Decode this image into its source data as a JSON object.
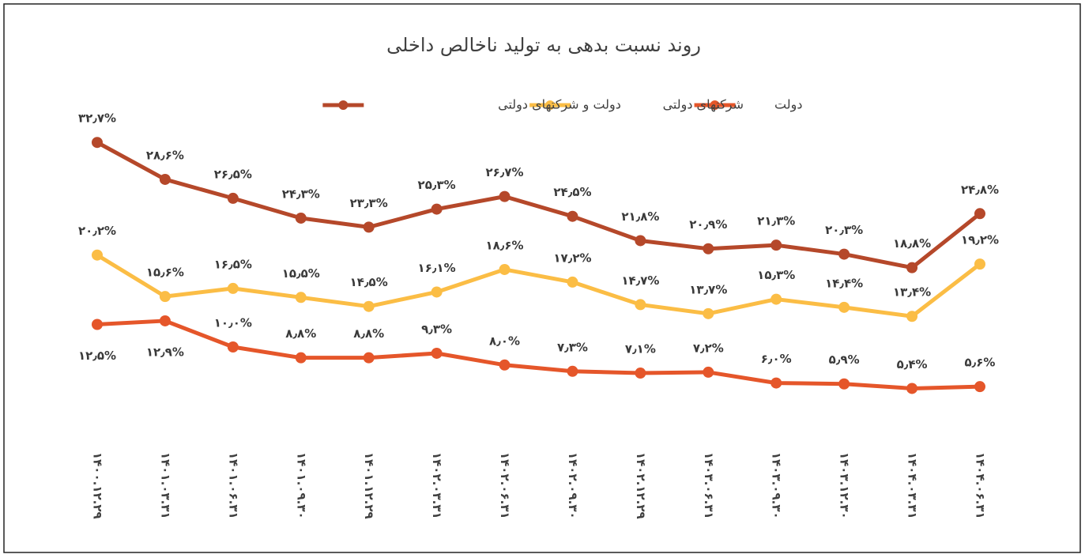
{
  "chart_data": {
    "type": "line",
    "title": "روند نسبت بدهی به تولید ناخالص داخلی",
    "categories": [
      "۱۴۰۰.۱۲.۲۹",
      "۱۴۰۱.۰۳.۳۱",
      "۱۴۰۱.۰۶.۳۱",
      "۱۴۰۱.۰۹.۳۰",
      "۱۴۰۱.۱۲.۲۹",
      "۱۴۰۲.۰۳.۳۱",
      "۱۴۰۲.۰۶.۳۱",
      "۱۴۰۲.۰۹.۳۰",
      "۱۴۰۲.۱۲.۲۹",
      "۱۴۰۳.۰۶.۳۱",
      "۱۴۰۳.۰۹.۳۰",
      "۱۴۰۳.۱۲.۳۰",
      "۱۴۰۴.۰۳.۳۱",
      "۱۴۰۴.۰۶.۳۱"
    ],
    "ylim": [
      0,
      35
    ],
    "series": [
      {
        "name": "دولت",
        "color": "#e5562a",
        "values": [
          12.5,
          12.9,
          10.0,
          8.8,
          8.8,
          9.3,
          8.0,
          7.3,
          7.1,
          7.2,
          6.0,
          5.9,
          5.4,
          5.6
        ],
        "value_labels": [
          "۱۲٫۵%",
          "۱۲٫۹%",
          "۱۰٫۰%",
          "۸٫۸%",
          "۸٫۸%",
          "۹٫۳%",
          "۸٫۰%",
          "۷٫۳%",
          "۷٫۱%",
          "۷٫۲%",
          "۶٫۰%",
          "۵٫۹%",
          "۵٫۴%",
          "۵٫۶%"
        ]
      },
      {
        "name": "شرکتهای دولتی",
        "color": "#fbbd45",
        "values": [
          20.2,
          15.6,
          16.5,
          15.5,
          14.5,
          16.1,
          18.6,
          17.2,
          14.7,
          13.7,
          15.3,
          14.4,
          13.4,
          19.2
        ],
        "value_labels": [
          "۲۰٫۲%",
          "۱۵٫۶%",
          "۱۶٫۵%",
          "۱۵٫۵%",
          "۱۴٫۵%",
          "۱۶٫۱%",
          "۱۸٫۶%",
          "۱۷٫۲%",
          "۱۴٫۷%",
          "۱۳٫۷%",
          "۱۵٫۳%",
          "۱۴٫۴%",
          "۱۳٫۴%",
          "۱۹٫۲%"
        ]
      },
      {
        "name": "دولت و شرکتهای دولتی",
        "color": "#b5482a",
        "values": [
          32.7,
          28.6,
          26.5,
          24.3,
          23.3,
          25.3,
          26.7,
          24.5,
          21.8,
          20.9,
          21.3,
          20.3,
          18.8,
          24.8
        ],
        "value_labels": [
          "۳۲٫۷%",
          "۲۸٫۶%",
          "۲۶٫۵%",
          "۲۴٫۳%",
          "۲۳٫۳%",
          "۲۵٫۳%",
          "۲۶٫۷%",
          "۲۴٫۵%",
          "۲۱٫۸%",
          "۲۰٫۹%",
          "۲۱٫۳%",
          "۲۰٫۳%",
          "۱۸٫۸%",
          "۲۴٫۸%"
        ]
      }
    ]
  }
}
